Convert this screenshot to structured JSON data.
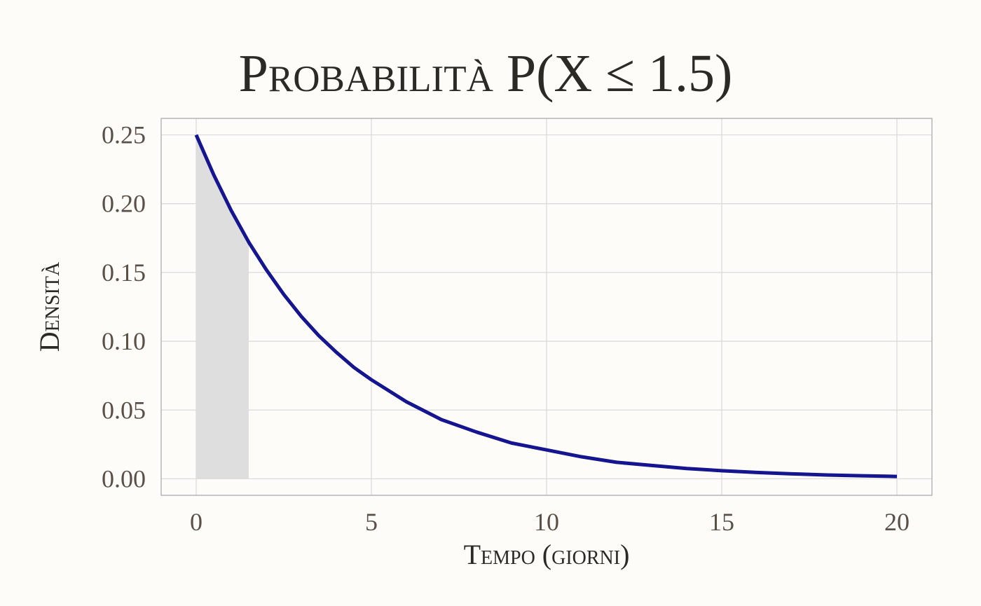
{
  "chart_data": {
    "type": "area",
    "title": "Probabilità P(X ≤ 1.5)",
    "xlabel": "Tempo (giorni)",
    "ylabel": "Densità",
    "xlim": [
      -1,
      21
    ],
    "ylim": [
      -0.012,
      0.262
    ],
    "x_ticks": [
      0,
      5,
      10,
      15,
      20
    ],
    "x_tick_labels": [
      "0",
      "5",
      "10",
      "15",
      "20"
    ],
    "y_ticks": [
      0.0,
      0.05,
      0.1,
      0.15,
      0.2,
      0.25
    ],
    "y_tick_labels": [
      "0.00",
      "0.05",
      "0.10",
      "0.15",
      "0.20",
      "0.25"
    ],
    "grid": true,
    "series": [
      {
        "kind": "line",
        "color": "#15158f",
        "x": [
          0,
          0.5,
          1,
          1.5,
          2,
          2.5,
          3,
          3.5,
          4,
          4.5,
          5,
          6,
          7,
          8,
          9,
          10,
          11,
          12,
          13,
          14,
          15,
          16,
          17,
          18,
          19,
          20
        ],
        "y": [
          0.25,
          0.221,
          0.195,
          0.172,
          0.152,
          0.134,
          0.118,
          0.104,
          0.092,
          0.081,
          0.072,
          0.056,
          0.043,
          0.034,
          0.026,
          0.021,
          0.016,
          0.012,
          0.0097,
          0.0075,
          0.0059,
          0.0046,
          0.0036,
          0.0028,
          0.0022,
          0.0017
        ]
      },
      {
        "kind": "shaded-area",
        "color": "#dedede",
        "x": [
          0,
          0.25,
          0.5,
          0.75,
          1,
          1.25,
          1.5
        ],
        "y": [
          0.25,
          0.235,
          0.221,
          0.207,
          0.195,
          0.183,
          0.172
        ]
      }
    ]
  }
}
